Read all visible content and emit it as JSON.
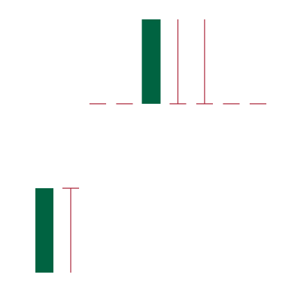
{
  "chart_data": {
    "type": "candlestick",
    "title": "",
    "xlabel": "",
    "ylabel": "",
    "colors": {
      "body": "#006341",
      "wick": "#a6192e"
    },
    "grid": false,
    "legend": "none",
    "series": [
      {
        "candles": [
          {
            "open": 1.0,
            "high": 1.0,
            "low": 1.0,
            "close": 1.0
          },
          {
            "open": 1.0,
            "high": 1.0,
            "low": 1.0,
            "close": 1.0
          },
          {
            "open": 1.0,
            "high": 2.0,
            "low": 1.0,
            "close": 2.0
          },
          {
            "open": 1.0,
            "high": 2.0,
            "low": 1.0,
            "close": 1.0
          },
          {
            "open": 1.0,
            "high": 2.0,
            "low": 1.0,
            "close": 1.0
          },
          {
            "open": 1.0,
            "high": 1.0,
            "low": 1.0,
            "close": 1.0
          },
          {
            "open": 1.0,
            "high": 1.0,
            "low": 1.0,
            "close": 1.0
          }
        ]
      },
      {
        "candles": [
          {
            "open": 0.0,
            "high": 1.0,
            "low": 0.0,
            "close": 1.0
          },
          {
            "open": 1.0,
            "high": 1.0,
            "low": 0.0,
            "close": 1.0
          }
        ]
      }
    ]
  }
}
